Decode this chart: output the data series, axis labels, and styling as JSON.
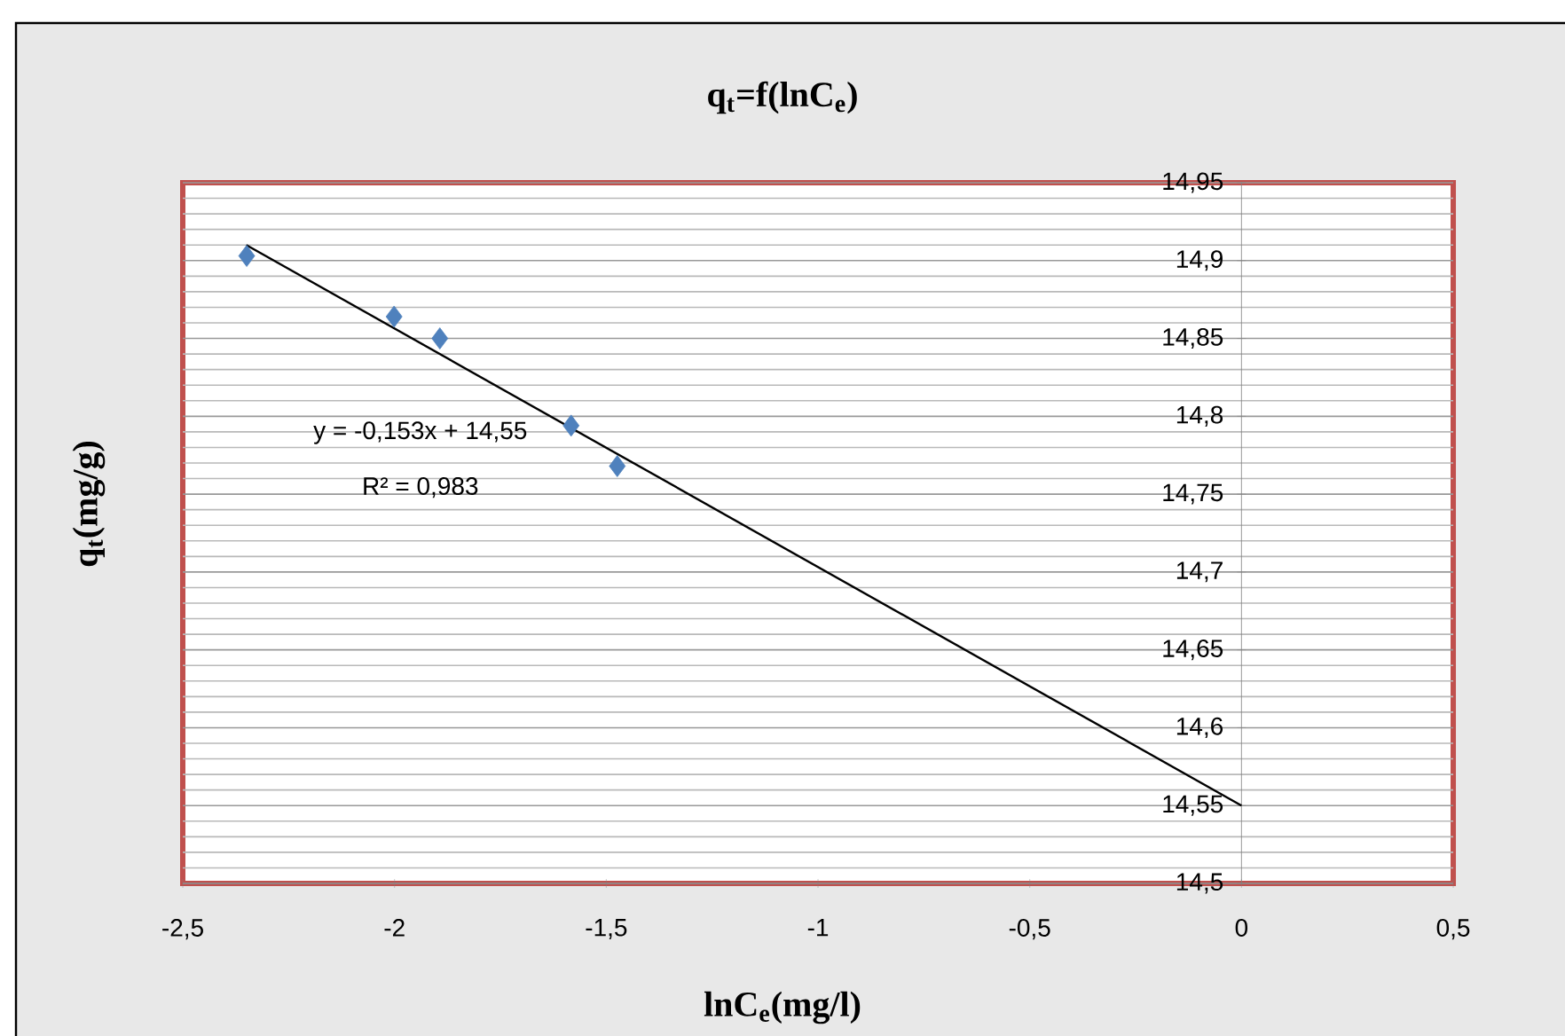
{
  "chart_data": {
    "type": "scatter",
    "title": "q$_{t}$=f(lnC$_{e}$)",
    "xlabel": "lnC$_{e}$(mg/l)",
    "ylabel": "q$_{t}$(mg/g)",
    "series": [
      {
        "color": "#4f81bd",
        "marker": "diamond",
        "x": [
          -2.349,
          -2.001,
          -1.893,
          -1.583,
          -1.474
        ],
        "values": [
          14.903,
          14.864,
          14.85,
          14.794,
          14.768
        ]
      },
      {
        "type": "line",
        "color": "#000000",
        "marker": "none",
        "line_style": "solid",
        "x": [
          -2.35,
          0
        ],
        "values": [
          14.91,
          14.55
        ]
      }
    ],
    "annotations": [
      "y = -0,153x + 14,55",
      "R² = 0,983"
    ],
    "xlim": [
      -2.5,
      0.5
    ],
    "xticks": [
      {
        "value": -2.5,
        "label": "-2,5"
      },
      {
        "value": -2,
        "label": "-2"
      },
      {
        "value": -1.5,
        "label": "-1,5"
      },
      {
        "value": -1,
        "label": "-1"
      },
      {
        "value": -0.5,
        "label": "-0,5"
      },
      0,
      {
        "value": 0.5,
        "label": "0,5"
      }
    ],
    "ylim": [
      14.5,
      14.95
    ],
    "yticks": [
      {
        "value": 14.5,
        "label": "14,5"
      },
      {
        "value": 14.55,
        "label": "14,55"
      },
      {
        "value": 14.6,
        "label": "14,6"
      },
      {
        "value": 14.65,
        "label": "14,65"
      },
      {
        "value": 14.7,
        "label": "14,7"
      },
      {
        "value": 14.75,
        "label": "14,75"
      },
      {
        "value": 14.8,
        "label": "14,8"
      },
      {
        "value": 14.85,
        "label": "14,85"
      },
      {
        "value": 14.9,
        "label": "14,9"
      },
      {
        "value": 14.95,
        "label": "14,95"
      }
    ],
    "grid": "y"
  }
}
